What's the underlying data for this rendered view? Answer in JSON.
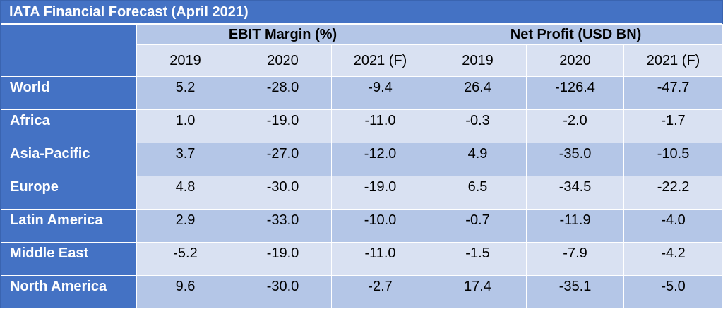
{
  "title": "IATA Financial Forecast (April 2021)",
  "groups": [
    "EBIT Margin (%)",
    "Net Profit (USD BN)"
  ],
  "years": [
    "2019",
    "2020",
    "2021 (F)"
  ],
  "rows": [
    {
      "region": "World",
      "ebit": [
        "5.2",
        "-28.0",
        "-9.4"
      ],
      "profit": [
        "26.4",
        "-126.4",
        "-47.7"
      ]
    },
    {
      "region": "Africa",
      "ebit": [
        "1.0",
        "-19.0",
        "-11.0"
      ],
      "profit": [
        "-0.3",
        "-2.0",
        "-1.7"
      ]
    },
    {
      "region": "Asia-Pacific",
      "ebit": [
        "3.7",
        "-27.0",
        "-12.0"
      ],
      "profit": [
        "4.9",
        "-35.0",
        "-10.5"
      ]
    },
    {
      "region": "Europe",
      "ebit": [
        "4.8",
        "-30.0",
        "-19.0"
      ],
      "profit": [
        "6.5",
        "-34.5",
        "-22.2"
      ]
    },
    {
      "region": "Latin America",
      "ebit": [
        "2.9",
        "-33.0",
        "-10.0"
      ],
      "profit": [
        "-0.7",
        "-11.9",
        "-4.0"
      ]
    },
    {
      "region": "Middle East",
      "ebit": [
        "-5.2",
        "-19.0",
        "-11.0"
      ],
      "profit": [
        "-1.5",
        "-7.9",
        "-4.2"
      ]
    },
    {
      "region": "North America",
      "ebit": [
        "9.6",
        "-30.0",
        "-2.7"
      ],
      "profit": [
        "17.4",
        "-35.1",
        "-5.0"
      ]
    }
  ],
  "colors": {
    "header_blue": "#4472c4",
    "band_dark": "#b4c6e7",
    "band_light": "#d9e1f2"
  }
}
